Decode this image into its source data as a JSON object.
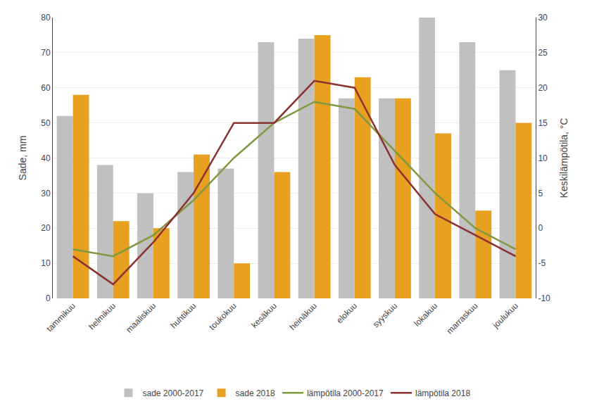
{
  "chart_data": {
    "type": "bar",
    "categories": [
      "tammikuu",
      "helmikuu",
      "maaliskuu",
      "huhtikuu",
      "toukokuu",
      "kesäkuu",
      "heinäkuu",
      "elokuu",
      "syyskuu",
      "lokakuu",
      "marraskuu",
      "joulukuu"
    ],
    "series": [
      {
        "name": "sade 2000-2017",
        "type": "bar",
        "color": "#c0c0c0",
        "values": [
          52,
          38,
          30,
          36,
          37,
          73,
          74,
          57,
          57,
          80,
          73,
          65
        ]
      },
      {
        "name": "sade 2018",
        "type": "bar",
        "color": "#e8a020",
        "values": [
          58,
          22,
          20,
          41,
          10,
          36,
          75,
          63,
          57,
          47,
          25,
          50
        ]
      },
      {
        "name": "lämpötila 2000-2017",
        "type": "line",
        "axis": "y2",
        "color": "#7f9940",
        "values": [
          -3,
          -4,
          -1,
          4,
          10,
          15,
          18,
          17,
          11,
          5,
          0,
          -3
        ]
      },
      {
        "name": "lämpötila 2018",
        "type": "line",
        "axis": "y2",
        "color": "#8b3030",
        "values": [
          -4,
          -8,
          -2,
          5,
          15,
          15,
          21,
          20,
          9,
          2,
          -1,
          -4
        ]
      }
    ],
    "ylabel": "Sade, mm",
    "y2label": "Keskilämpötila, °C",
    "ylim": [
      0,
      80
    ],
    "yticks": [
      0,
      10,
      20,
      30,
      40,
      50,
      60,
      70,
      80
    ],
    "y2lim": [
      -10,
      30
    ],
    "y2ticks": [
      -10,
      -5,
      0,
      5,
      10,
      15,
      20,
      25,
      30
    ],
    "grid": true,
    "legend": "bottom"
  }
}
